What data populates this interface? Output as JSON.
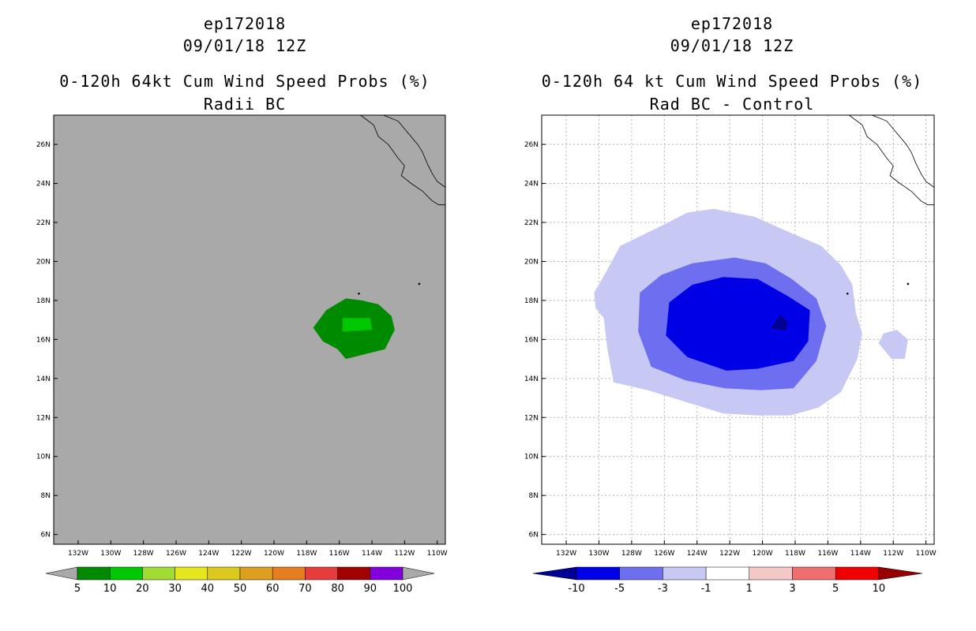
{
  "chart_data": [
    {
      "type": "heatmap",
      "storm_id": "ep172018",
      "date": "09/01/18 12Z",
      "title": "0-120h 64kt Cum Wind Speed Probs (%)",
      "subtitle": "Radii BC",
      "xlim": [
        -133.5,
        -109.5
      ],
      "ylim": [
        5.5,
        27.5
      ],
      "x_ticks": [
        "132W",
        "130W",
        "128W",
        "126W",
        "124W",
        "122W",
        "120W",
        "118W",
        "116W",
        "114W",
        "112W",
        "110W"
      ],
      "y_ticks": [
        "6N",
        "8N",
        "10N",
        "12N",
        "14N",
        "16N",
        "18N",
        "20N",
        "22N",
        "24N",
        "26N"
      ],
      "grid": false,
      "background_color": "#a9a9a9",
      "colorbar": {
        "labels": [
          "5",
          "10",
          "20",
          "30",
          "40",
          "50",
          "60",
          "70",
          "80",
          "90",
          "100"
        ],
        "colors": [
          "#008a00",
          "#00c800",
          "#a0dc32",
          "#e6e61e",
          "#dcc81e",
          "#dca01e",
          "#e67d1e",
          "#e63c3c",
          "#a00000",
          "#8200dc"
        ],
        "end_color": "#a9a9a9"
      },
      "contours": [
        {
          "level": "5-10",
          "color": "#008a00",
          "polygon": [
            [
              -117.6,
              16.6
            ],
            [
              -116.8,
              17.5
            ],
            [
              -115.6,
              18.1
            ],
            [
              -114.6,
              18.0
            ],
            [
              -113.6,
              17.8
            ],
            [
              -112.8,
              17.2
            ],
            [
              -112.6,
              16.5
            ],
            [
              -113.2,
              15.5
            ],
            [
              -115.6,
              15.0
            ],
            [
              -116.1,
              15.5
            ],
            [
              -117.0,
              15.9
            ]
          ]
        },
        {
          "level": "10-20",
          "color": "#00c800",
          "polygon": [
            [
              -115.8,
              17.1
            ],
            [
              -114.1,
              17.1
            ],
            [
              -114.0,
              16.5
            ],
            [
              -115.8,
              16.4
            ]
          ]
        }
      ]
    },
    {
      "type": "heatmap",
      "storm_id": "ep172018",
      "date": "09/01/18 12Z",
      "title": "0-120h 64 kt Cum Wind Speed Probs (%)",
      "subtitle": "Rad BC - Control",
      "xlim": [
        -133.5,
        -109.5
      ],
      "ylim": [
        5.5,
        27.5
      ],
      "x_ticks": [
        "132W",
        "130W",
        "128W",
        "126W",
        "124W",
        "122W",
        "120W",
        "118W",
        "116W",
        "114W",
        "112W",
        "110W"
      ],
      "y_ticks": [
        "6N",
        "8N",
        "10N",
        "12N",
        "14N",
        "16N",
        "18N",
        "20N",
        "22N",
        "24N",
        "26N"
      ],
      "grid": true,
      "background_color": "#ffffff",
      "colorbar": {
        "labels": [
          "-10",
          "-5",
          "-3",
          "-1",
          "1",
          "3",
          "5",
          "10"
        ],
        "colors": [
          "#0000e6",
          "#6e6ef0",
          "#c8c8f5",
          "#ffffff",
          "#f5c8c8",
          "#f06e6e",
          "#f00000"
        ],
        "low_color": "#000096",
        "high_color": "#960000"
      },
      "contours": [
        {
          "level": "-1 to -3",
          "color": "#c8c8f5",
          "polygon": [
            [
              -130.3,
              18.4
            ],
            [
              -129.6,
              19.4
            ],
            [
              -128.7,
              20.8
            ],
            [
              -126.0,
              21.9
            ],
            [
              -124.6,
              22.5
            ],
            [
              -123.0,
              22.7
            ],
            [
              -120.5,
              22.3
            ],
            [
              -118.1,
              21.4
            ],
            [
              -116.4,
              20.8
            ],
            [
              -115.2,
              19.8
            ],
            [
              -114.5,
              18.8
            ],
            [
              -114.3,
              17.4
            ],
            [
              -113.9,
              16.3
            ],
            [
              -114.2,
              15.0
            ],
            [
              -115.2,
              13.3
            ],
            [
              -116.6,
              12.5
            ],
            [
              -118.3,
              12.1
            ],
            [
              -120.3,
              12.1
            ],
            [
              -122.4,
              12.2
            ],
            [
              -124.7,
              12.8
            ],
            [
              -127.0,
              13.4
            ],
            [
              -129.1,
              13.8
            ],
            [
              -129.5,
              15.6
            ],
            [
              -129.7,
              17.1
            ],
            [
              -130.2,
              17.6
            ]
          ]
        },
        {
          "level": "-1 to -3",
          "color": "#c8c8f5",
          "polygon": [
            [
              -112.6,
              16.3
            ],
            [
              -111.8,
              16.5
            ],
            [
              -111.1,
              16.0
            ],
            [
              -111.3,
              15.0
            ],
            [
              -112.1,
              15.0
            ],
            [
              -112.9,
              15.8
            ]
          ]
        },
        {
          "level": "-3 to -5",
          "color": "#6e6ef0",
          "polygon": [
            [
              -127.5,
              18.4
            ],
            [
              -126.2,
              19.3
            ],
            [
              -124.3,
              19.9
            ],
            [
              -121.7,
              20.2
            ],
            [
              -119.8,
              19.9
            ],
            [
              -118.2,
              19.1
            ],
            [
              -116.7,
              18.1
            ],
            [
              -116.1,
              16.7
            ],
            [
              -116.7,
              14.9
            ],
            [
              -118.1,
              13.5
            ],
            [
              -120.1,
              13.4
            ],
            [
              -122.3,
              13.5
            ],
            [
              -124.7,
              13.9
            ],
            [
              -126.8,
              14.6
            ],
            [
              -127.6,
              16.4
            ]
          ]
        },
        {
          "level": "-5 to -10",
          "color": "#0000e6",
          "polygon": [
            [
              -125.7,
              17.9
            ],
            [
              -124.3,
              18.8
            ],
            [
              -122.4,
              19.2
            ],
            [
              -120.3,
              19.1
            ],
            [
              -118.4,
              18.2
            ],
            [
              -117.1,
              17.5
            ],
            [
              -117.2,
              15.9
            ],
            [
              -118.1,
              14.9
            ],
            [
              -120.3,
              14.5
            ],
            [
              -122.2,
              14.4
            ],
            [
              -124.6,
              15.1
            ],
            [
              -125.9,
              16.2
            ]
          ]
        },
        {
          "level": "< -10",
          "color": "#000096",
          "polygon": [
            [
              -119.4,
              16.6
            ],
            [
              -118.9,
              17.2
            ],
            [
              -118.5,
              16.9
            ],
            [
              -118.6,
              16.5
            ]
          ]
        }
      ]
    }
  ]
}
